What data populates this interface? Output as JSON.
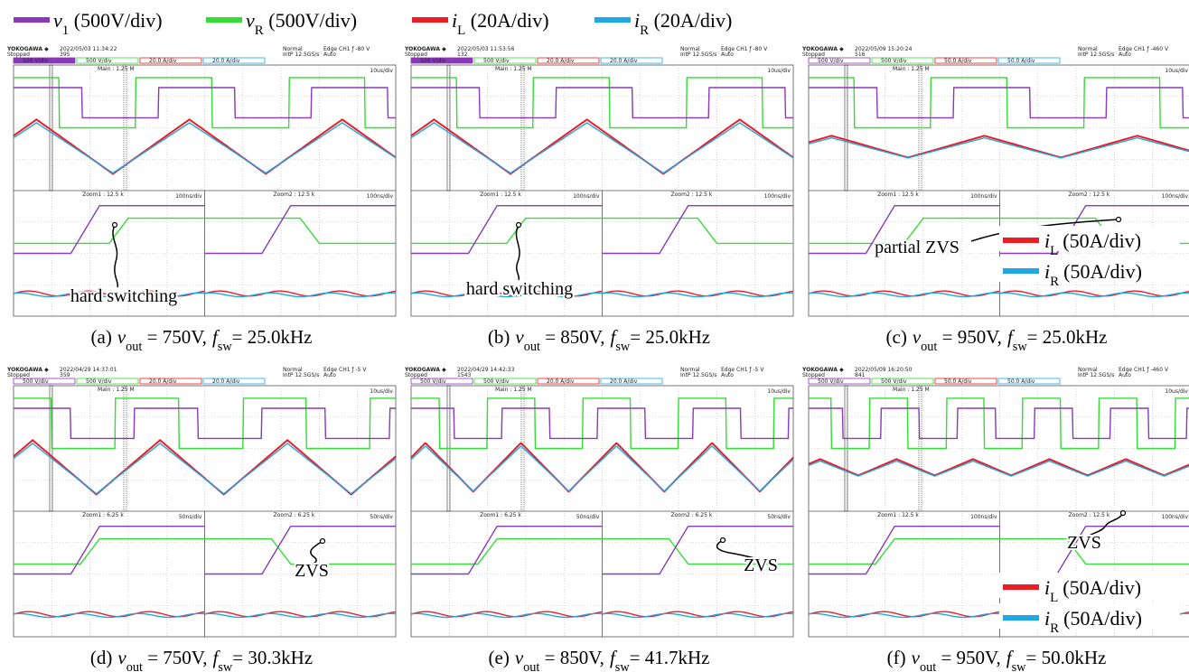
{
  "legend": [
    {
      "symbol": "v",
      "subscript": "1",
      "scale": "(500V/div)",
      "color": "#8a3ab9"
    },
    {
      "symbol": "v",
      "subscript": "R",
      "scale": "(500V/div)",
      "color": "#33dd33"
    },
    {
      "symbol": "i",
      "subscript": "L",
      "scale": "(20A/div)",
      "color": "#ee1c24"
    },
    {
      "symbol": "i",
      "subscript": "R",
      "scale": "(20A/div)",
      "color": "#1fa7e6"
    }
  ],
  "caption_symbols": {
    "v": "v",
    "v_sub": "out",
    "f": "f",
    "f_sub": "sw"
  },
  "scope": {
    "brand": "YOKOGAWA ◆",
    "status": "Stopped",
    "mode": "Normal",
    "rate": "IntP 12.5GS/s",
    "trigger_mode": "Auto",
    "main": "Main : 1.25 M",
    "main_div": "10us/div"
  },
  "panels": [
    {
      "label": "(a)",
      "vout": "= 750V,",
      "fsw": "= 25.0kHz",
      "date": "2022/05/03 11:34:22",
      "count": "395",
      "trigger": "Edge CH1 ƒ -80 V",
      "channels": [
        "500 V/div",
        "500 V/div",
        "20.0 A/div",
        "20.0 A/div"
      ],
      "zoom": [
        "Zoom1 : 12.5 k",
        "Zoom2 : 12.5 k"
      ],
      "zoom_div": "100ns/div",
      "annotation": "hard switching"
    },
    {
      "label": "(b)",
      "vout": "= 850V,",
      "fsw": "= 25.0kHz",
      "date": "2022/05/03 11:53:56",
      "count": "132",
      "trigger": "Edge CH1 ƒ -80 V",
      "channels": [
        "500 V/div",
        "500 V/div",
        "20.0 A/div",
        "20.0 A/div"
      ],
      "zoom": [
        "Zoom1 : 12.5 k",
        "Zoom2 : 12.5 k"
      ],
      "zoom_div": "100ns/div",
      "annotation": "hard switching"
    },
    {
      "label": "(c)",
      "vout": "= 950V,",
      "fsw": "= 25.0kHz",
      "date": "2022/05/09 15:20:24",
      "count": "516",
      "trigger": "Edge CH1 ƒ -460 V",
      "channels": [
        "500 V/div",
        "500 V/div",
        "50.0 A/div",
        "50.0 A/div"
      ],
      "zoom": [
        "Zoom1 : 12.5 k",
        "Zoom2 : 12.5 k"
      ],
      "zoom_div": "100ns/div",
      "annotation": "partial ZVS",
      "inset": [
        {
          "symbol": "i",
          "subscript": "L",
          "scale": "(50A/div)"
        },
        {
          "symbol": "i",
          "subscript": "R",
          "scale": "(50A/div)"
        }
      ]
    },
    {
      "label": "(d)",
      "vout": "= 750V,",
      "fsw": "= 30.3kHz",
      "date": "2022/04/29 14:37:01",
      "count": "359",
      "trigger": "Edge CH1 ƒ -5 V",
      "channels": [
        "500 V/div",
        "500 V/div",
        "20.0 A/div",
        "20.0 A/div"
      ],
      "zoom": [
        "Zoom1 : 6.25 k",
        "Zoom2 : 6.25 k"
      ],
      "zoom_div": "50ns/div",
      "annotation": "ZVS"
    },
    {
      "label": "(e)",
      "vout": "= 850V,",
      "fsw": "= 41.7kHz",
      "date": "2022/04/29 14:42:33",
      "count": "1543",
      "trigger": "Edge CH1 ƒ -5 V",
      "channels": [
        "500 V/div",
        "500 V/div",
        "20.0 A/div",
        "20.0 A/div"
      ],
      "zoom": [
        "Zoom1 : 6.25 k",
        "Zoom2 : 6.25 k"
      ],
      "zoom_div": "50ns/div",
      "annotation": "ZVS"
    },
    {
      "label": "(f)",
      "vout": "= 950V,",
      "fsw": "= 50.0kHz",
      "date": "2022/05/09 16:20:50",
      "count": "841",
      "trigger": "Edge CH1 ƒ -460 V",
      "channels": [
        "500 V/div",
        "500 V/div",
        "50.0 A/div",
        "50.0 A/div"
      ],
      "zoom": [
        "Zoom1 : 12.5 k",
        "Zoom2 : 12.5 k"
      ],
      "zoom_div": "100ns/div",
      "annotation": "ZVS",
      "inset": [
        {
          "symbol": "i",
          "subscript": "L",
          "scale": "(50A/div)"
        },
        {
          "symbol": "i",
          "subscript": "R",
          "scale": "(50A/div)"
        }
      ]
    }
  ]
}
